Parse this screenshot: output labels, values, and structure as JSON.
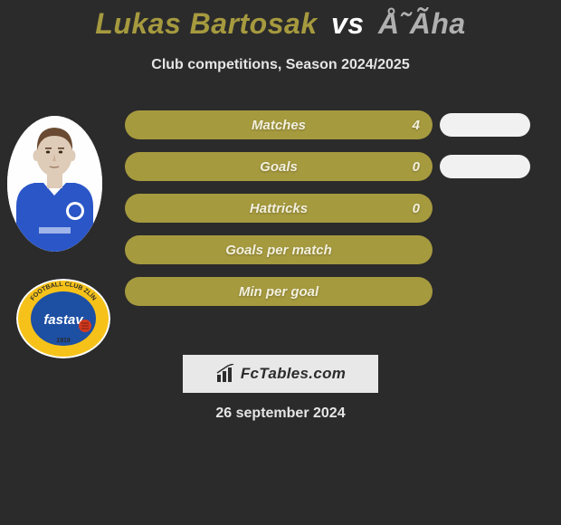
{
  "header": {
    "player1": "Lukas Bartosak",
    "vs": "vs",
    "player2": "Å˜Ãha",
    "subtitle": "Club competitions, Season 2024/2025",
    "player1_color": "#a69a3f",
    "player2_color": "#b0b0b0"
  },
  "colors": {
    "background": "#2b2b2b",
    "bar_p1": "#a69a3f",
    "bar_p2": "#f1f1f1",
    "text_on_bar": "#f2f0dd"
  },
  "stats": [
    {
      "label": "Matches",
      "p1_value": "4",
      "p1_width": 340,
      "p2_show": true,
      "p2_width": 100
    },
    {
      "label": "Goals",
      "p1_value": "0",
      "p1_width": 340,
      "p2_show": true,
      "p2_width": 100
    },
    {
      "label": "Hattricks",
      "p1_value": "0",
      "p1_width": 340,
      "p2_show": false,
      "p2_width": 0
    },
    {
      "label": "Goals per match",
      "p1_value": "",
      "p1_width": 340,
      "p2_show": false,
      "p2_width": 0
    },
    {
      "label": "Min per goal",
      "p1_value": "",
      "p1_width": 340,
      "p2_show": false,
      "p2_width": 0
    }
  ],
  "brand": {
    "text": "FcTables.com"
  },
  "date": "26 september 2024",
  "club": {
    "top_text": "FOOTBALL CLUB ZLÍN",
    "mid_text": "fastav",
    "year": "1919",
    "ring_color": "#f6c21a",
    "inner_blue": "#1d4fa3",
    "red": "#d23a1f"
  },
  "player_svg": {
    "skin": "#decbb8",
    "hair": "#6a4a32",
    "jersey": "#2a56c7",
    "crest_bg": "#ffffff",
    "collar": "#ffffff"
  }
}
